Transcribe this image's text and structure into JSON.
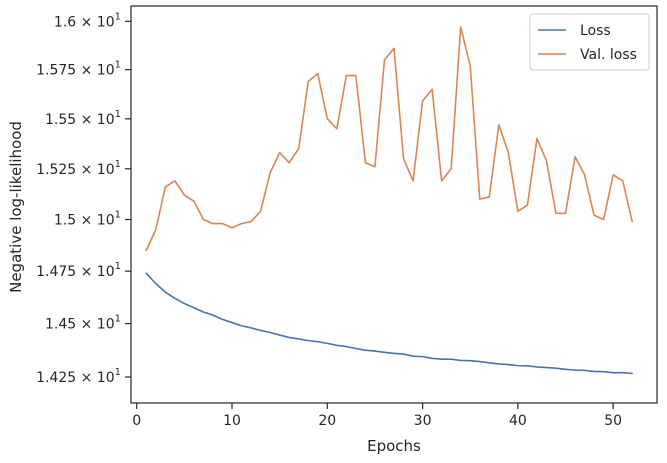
{
  "chart_data": {
    "type": "line",
    "title": "",
    "xlabel": "Epochs",
    "ylabel": "Negative log-likelihood",
    "yscale": "log",
    "grid": false,
    "legend_position": "top-right",
    "xlim": [
      -0.6,
      54.6
    ],
    "ylim": [
      14.13,
      16.08
    ],
    "x_ticks": [
      {
        "value": 0,
        "label": "0"
      },
      {
        "value": 10,
        "label": "10"
      },
      {
        "value": 20,
        "label": "20"
      },
      {
        "value": 30,
        "label": "30"
      },
      {
        "value": 40,
        "label": "40"
      },
      {
        "value": 50,
        "label": "50"
      }
    ],
    "y_ticks": [
      {
        "value": 14.25,
        "mantissa": "1.425",
        "base": "10",
        "exp": "1"
      },
      {
        "value": 14.5,
        "mantissa": "1.45",
        "base": "10",
        "exp": "1"
      },
      {
        "value": 14.75,
        "mantissa": "1.475",
        "base": "10",
        "exp": "1"
      },
      {
        "value": 15.0,
        "mantissa": "1.5",
        "base": "10",
        "exp": "1"
      },
      {
        "value": 15.25,
        "mantissa": "1.525",
        "base": "10",
        "exp": "1"
      },
      {
        "value": 15.5,
        "mantissa": "1.55",
        "base": "10",
        "exp": "1"
      },
      {
        "value": 15.75,
        "mantissa": "1.575",
        "base": "10",
        "exp": "1"
      },
      {
        "value": 16.0,
        "mantissa": "1.6",
        "base": "10",
        "exp": "1"
      }
    ],
    "x": [
      1,
      2,
      3,
      4,
      5,
      6,
      7,
      8,
      9,
      10,
      11,
      12,
      13,
      14,
      15,
      16,
      17,
      18,
      19,
      20,
      21,
      22,
      23,
      24,
      25,
      26,
      27,
      28,
      29,
      30,
      31,
      32,
      33,
      34,
      35,
      36,
      37,
      38,
      39,
      40,
      41,
      42,
      43,
      44,
      45,
      46,
      47,
      48,
      49,
      50,
      51,
      52
    ],
    "series": [
      {
        "name": "Loss",
        "color": "#4c72b0",
        "values": [
          14.74,
          14.69,
          14.65,
          14.62,
          14.595,
          14.575,
          14.555,
          14.54,
          14.52,
          14.505,
          14.49,
          14.48,
          14.468,
          14.458,
          14.446,
          14.435,
          14.428,
          14.42,
          14.415,
          14.407,
          14.398,
          14.392,
          14.383,
          14.375,
          14.371,
          14.365,
          14.36,
          14.357,
          14.347,
          14.345,
          14.337,
          14.333,
          14.333,
          14.327,
          14.326,
          14.322,
          14.316,
          14.311,
          14.308,
          14.303,
          14.302,
          14.297,
          14.294,
          14.291,
          14.286,
          14.282,
          14.281,
          14.276,
          14.275,
          14.27,
          14.27,
          14.267
        ]
      },
      {
        "name": "Val. loss",
        "color": "#dd8452",
        "values": [
          14.85,
          14.95,
          15.16,
          15.19,
          15.12,
          15.09,
          15.0,
          14.98,
          14.98,
          14.96,
          14.98,
          14.99,
          15.04,
          15.23,
          15.33,
          15.28,
          15.35,
          15.69,
          15.73,
          15.5,
          15.45,
          15.72,
          15.72,
          15.28,
          15.26,
          15.8,
          15.86,
          15.3,
          15.19,
          15.59,
          15.65,
          15.19,
          15.25,
          15.97,
          15.77,
          15.1,
          15.11,
          15.47,
          15.33,
          15.04,
          15.07,
          15.4,
          15.29,
          15.03,
          15.03,
          15.31,
          15.22,
          15.02,
          15.0,
          15.22,
          15.19,
          14.99
        ]
      }
    ]
  }
}
